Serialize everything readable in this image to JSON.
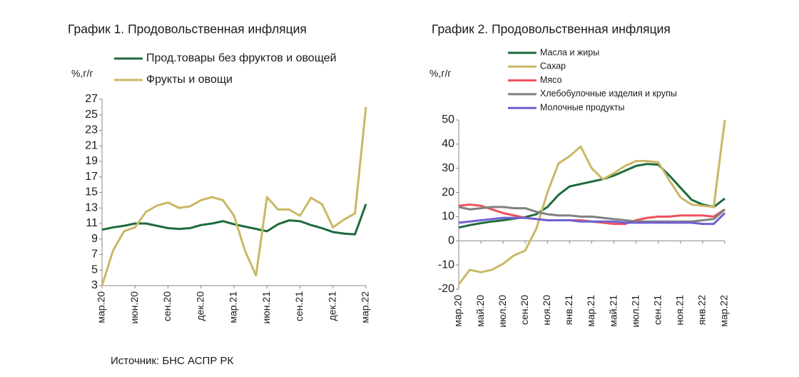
{
  "chart_data": [
    {
      "type": "line",
      "title": "График 1. Продовольственная инфляция",
      "ylabel": "%,г/г",
      "categories": [
        "мар.20",
        null,
        null,
        "июн.20",
        null,
        null,
        "сен.20",
        null,
        null,
        "дек.20",
        null,
        null,
        "мар.21",
        null,
        null,
        "июн.21",
        null,
        null,
        "сен.21",
        null,
        null,
        "дек.21",
        null,
        null,
        "мар.22"
      ],
      "series": [
        {
          "name": "Прод.товары без фруктов и овощей",
          "color": "#1e6b3a",
          "values": [
            10.2,
            10.5,
            10.7,
            11.0,
            11.0,
            10.7,
            10.4,
            10.3,
            10.4,
            10.8,
            11.0,
            11.3,
            10.9,
            10.6,
            10.3,
            10.0,
            10.9,
            11.4,
            11.3,
            10.8,
            10.4,
            9.9,
            9.7,
            9.6,
            13.5
          ]
        },
        {
          "name": "Фрукты и овощи",
          "color": "#c9b865",
          "values": [
            3,
            7.5,
            10,
            10.5,
            12.5,
            13.3,
            13.7,
            13,
            13.2,
            14.0,
            14.4,
            14.0,
            12.0,
            7.5,
            4.3,
            14.4,
            12.8,
            12.8,
            12.0,
            14.3,
            13.5,
            10.5,
            11.5,
            12.3,
            26
          ]
        }
      ],
      "ylim": [
        3,
        27
      ],
      "yticks": [
        3,
        5,
        7,
        9,
        11,
        13,
        15,
        17,
        19,
        21,
        23,
        25,
        27
      ],
      "grid": false
    },
    {
      "type": "line",
      "title": "График 2. Продовольственная инфляция",
      "ylabel": "%,г/г",
      "categories": [
        "мар.20",
        null,
        "май.20",
        null,
        "июл.20",
        null,
        "сен.20",
        null,
        "ноя.20",
        null,
        "янв.21",
        null,
        "мар.21",
        null,
        "май.21",
        null,
        "июл.21",
        null,
        "сен.21",
        null,
        "ноя.21",
        null,
        "янв.22",
        null,
        "мар.22"
      ],
      "series": [
        {
          "name": "Масла и жиры",
          "color": "#1e6b3a",
          "values": [
            5.5,
            6.5,
            7.3,
            8,
            8.5,
            9.2,
            9.8,
            11,
            14,
            19,
            22.5,
            23.5,
            24.5,
            25.5,
            27,
            29,
            31,
            31.8,
            31.5,
            27,
            22,
            17,
            15,
            14,
            17.5
          ]
        },
        {
          "name": "Сахар",
          "color": "#c9b865",
          "values": [
            -18,
            -12,
            -13,
            -12,
            -9.5,
            -6,
            -4,
            5,
            20,
            32,
            35,
            39,
            30,
            25.5,
            28,
            31,
            33,
            33,
            32.5,
            25,
            18,
            15,
            14.5,
            14,
            50
          ]
        },
        {
          "name": "Мясо",
          "color": "#f0505a",
          "values": [
            14.5,
            15,
            14.5,
            13,
            11.5,
            10.5,
            9.5,
            9,
            8.5,
            8.5,
            8.5,
            8.5,
            8,
            7.5,
            7,
            7,
            8.5,
            9.5,
            10,
            10,
            10.5,
            10.5,
            10.5,
            10,
            13
          ]
        },
        {
          "name": "Хлебобулочные изделия и крупы",
          "color": "#808080",
          "values": [
            14,
            13,
            13.5,
            14,
            14,
            13.5,
            13.5,
            12,
            11,
            10.5,
            10.5,
            10,
            10,
            9.5,
            9,
            8.5,
            8,
            8,
            8,
            8,
            8,
            8,
            8.5,
            9,
            13
          ]
        },
        {
          "name": "Молочные продукты",
          "color": "#7060d0",
          "values": [
            7.5,
            8,
            8.5,
            9,
            9.5,
            9.5,
            9.5,
            9,
            8.5,
            8.5,
            8.5,
            8,
            8,
            8,
            8,
            7.5,
            7.5,
            7.5,
            7.5,
            7.5,
            7.5,
            7.5,
            7,
            7,
            11.5
          ]
        }
      ],
      "ylim": [
        -20,
        50
      ],
      "yticks": [
        -20,
        -10,
        0,
        10,
        20,
        30,
        40,
        50
      ],
      "grid": false
    }
  ],
  "source": "Источник: БНС АСПР РК"
}
